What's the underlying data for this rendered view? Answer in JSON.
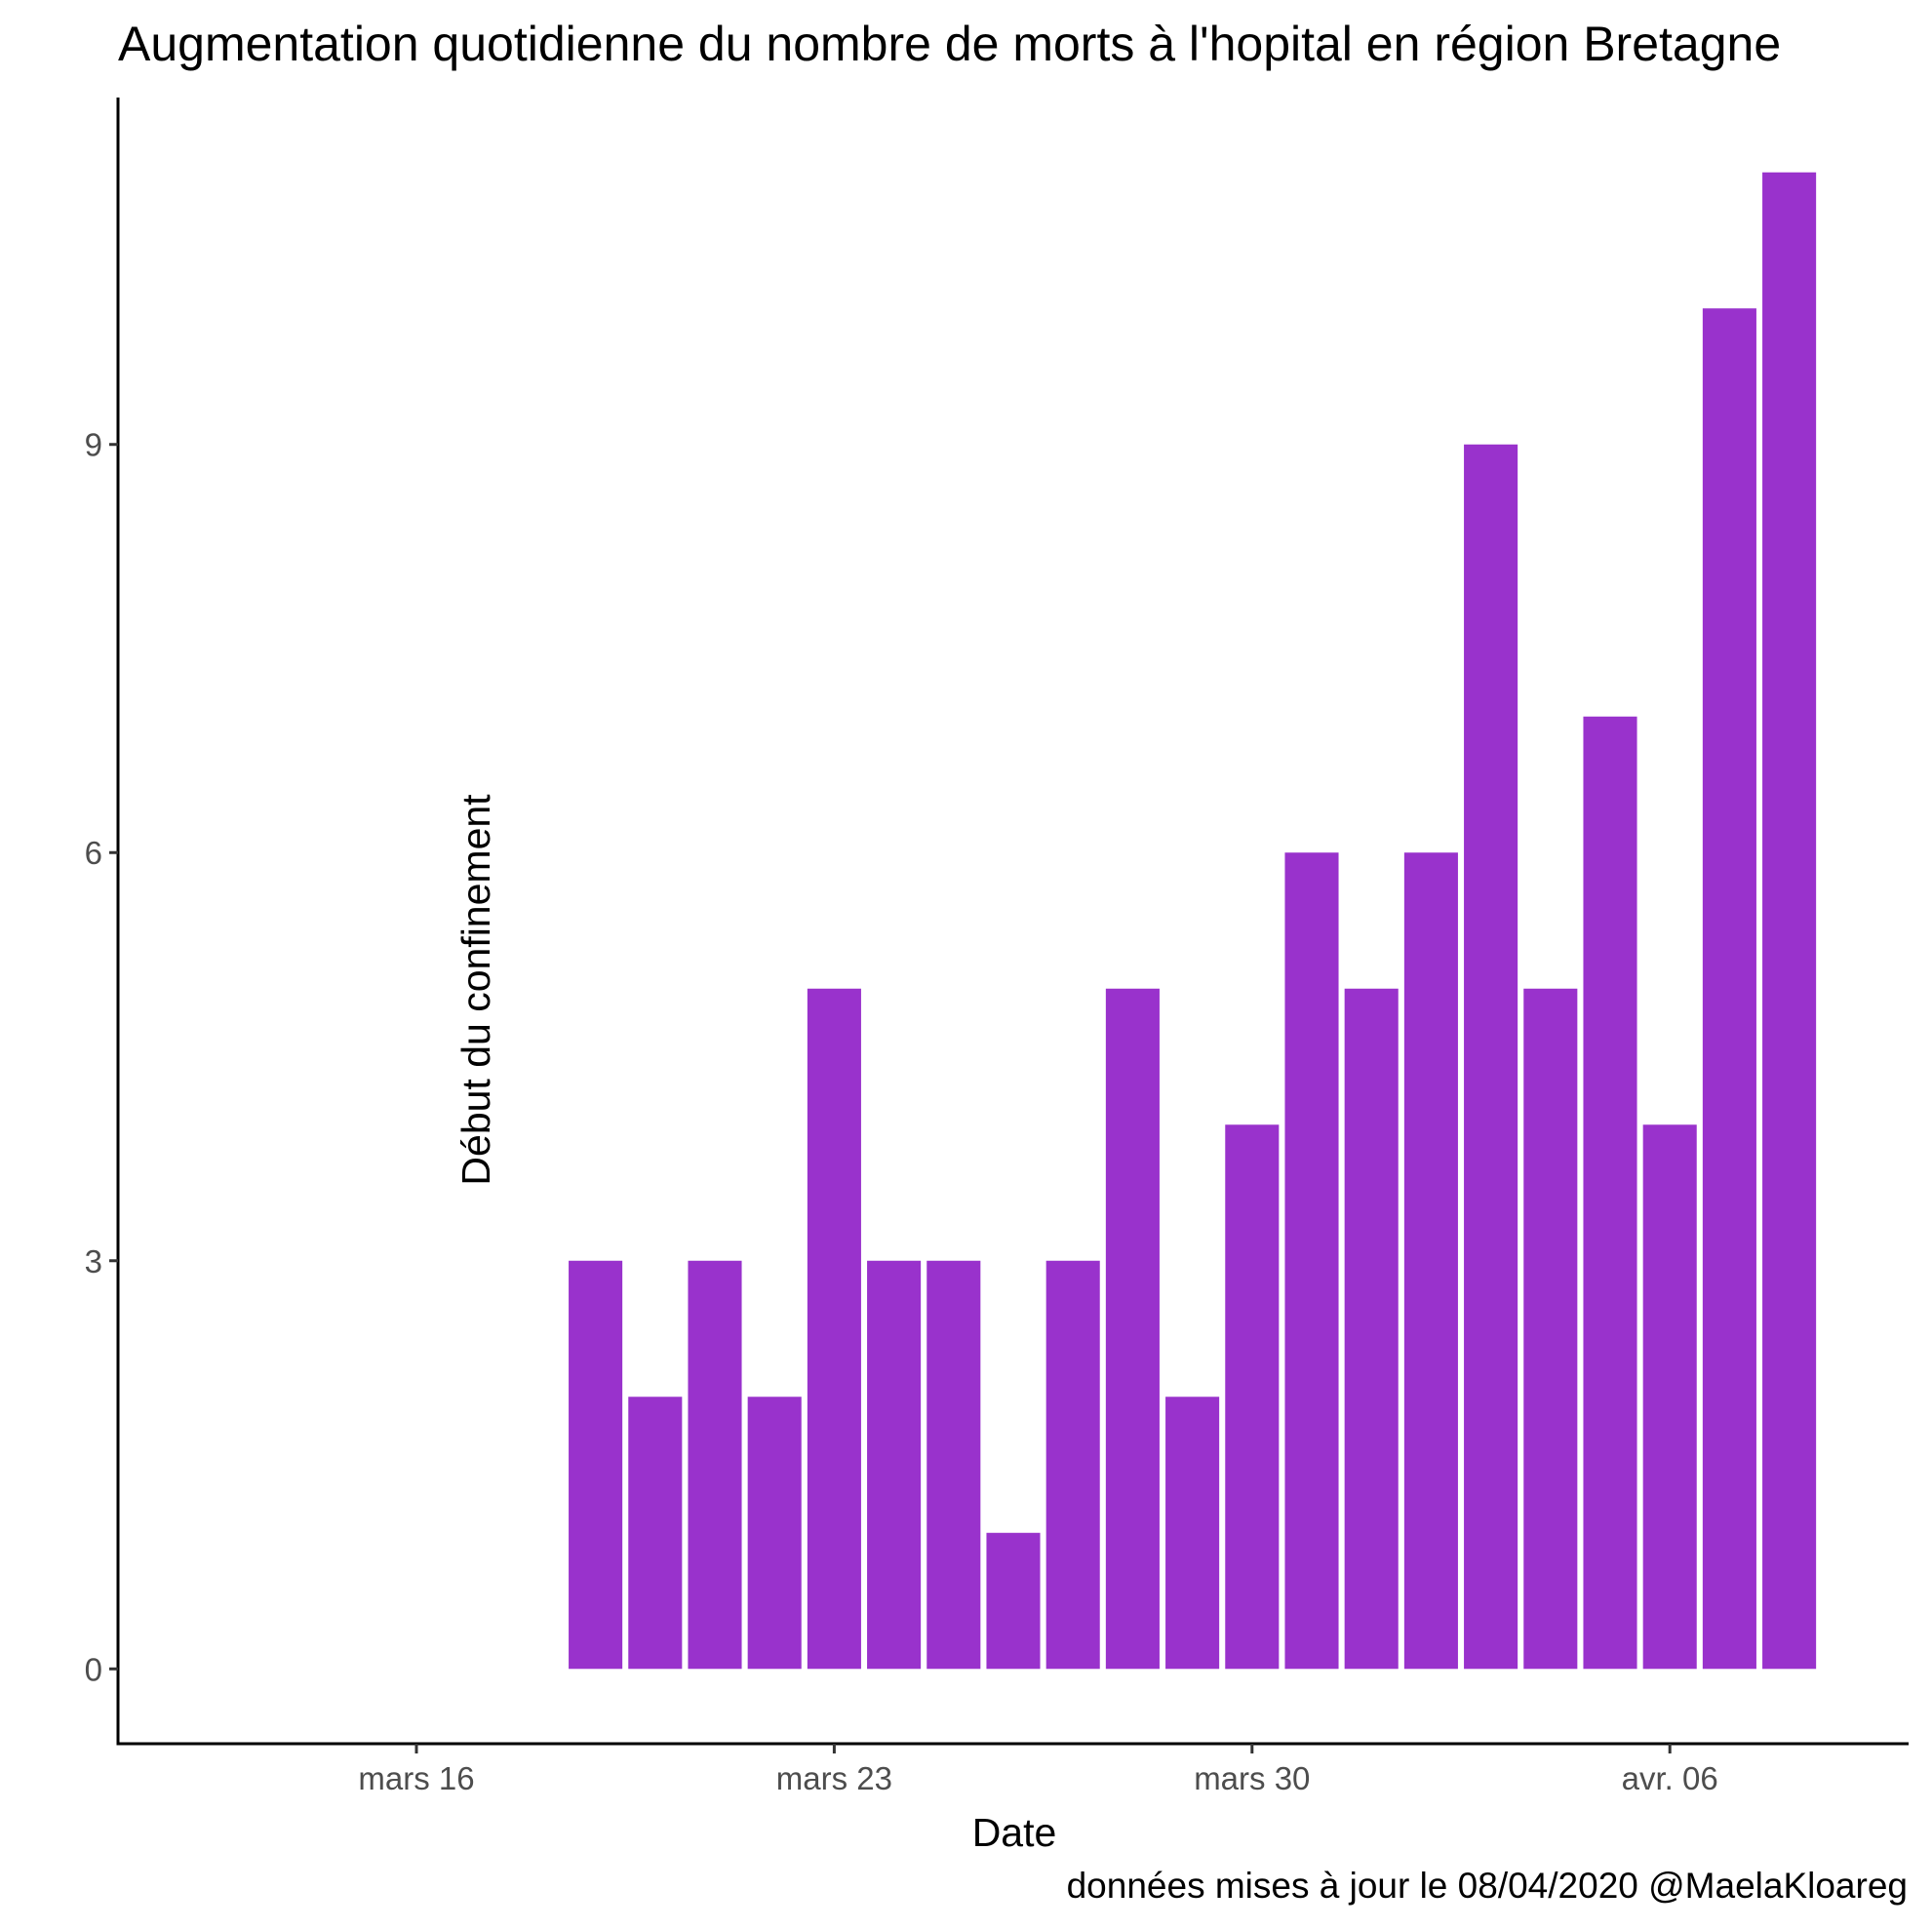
{
  "chart_data": {
    "type": "bar",
    "title": "Augmentation quotidienne du nombre de morts à l'hopital en région Bretagne",
    "xlabel": "Date",
    "ylabel": "",
    "caption": "données mises à jour le 08/04/2020 @MaelaKloareg",
    "annotation": {
      "text": "Début du confinement",
      "x": "2020-03-17"
    },
    "color": "#9932CC",
    "x_ticks": [
      {
        "date": "2020-03-16",
        "label": "mars 16"
      },
      {
        "date": "2020-03-23",
        "label": "mars 23"
      },
      {
        "date": "2020-03-30",
        "label": "mars 30"
      },
      {
        "date": "2020-04-06",
        "label": "avr. 06"
      }
    ],
    "y_ticks": [
      0,
      3,
      6,
      9
    ],
    "xlim": [
      "2020-03-11",
      "2020-04-10"
    ],
    "ylim": [
      -0.55,
      11.55
    ],
    "x": [
      "2020-03-19",
      "2020-03-20",
      "2020-03-21",
      "2020-03-22",
      "2020-03-23",
      "2020-03-24",
      "2020-03-25",
      "2020-03-26",
      "2020-03-27",
      "2020-03-28",
      "2020-03-29",
      "2020-03-30",
      "2020-03-31",
      "2020-04-01",
      "2020-04-02",
      "2020-04-03",
      "2020-04-04",
      "2020-04-05",
      "2020-04-06",
      "2020-04-07",
      "2020-04-08"
    ],
    "values": [
      3,
      2,
      3,
      2,
      5,
      3,
      3,
      1,
      3,
      5,
      2,
      4,
      6,
      5,
      6,
      9,
      5,
      7,
      4,
      10,
      11
    ],
    "grid": false,
    "legend": "none"
  }
}
